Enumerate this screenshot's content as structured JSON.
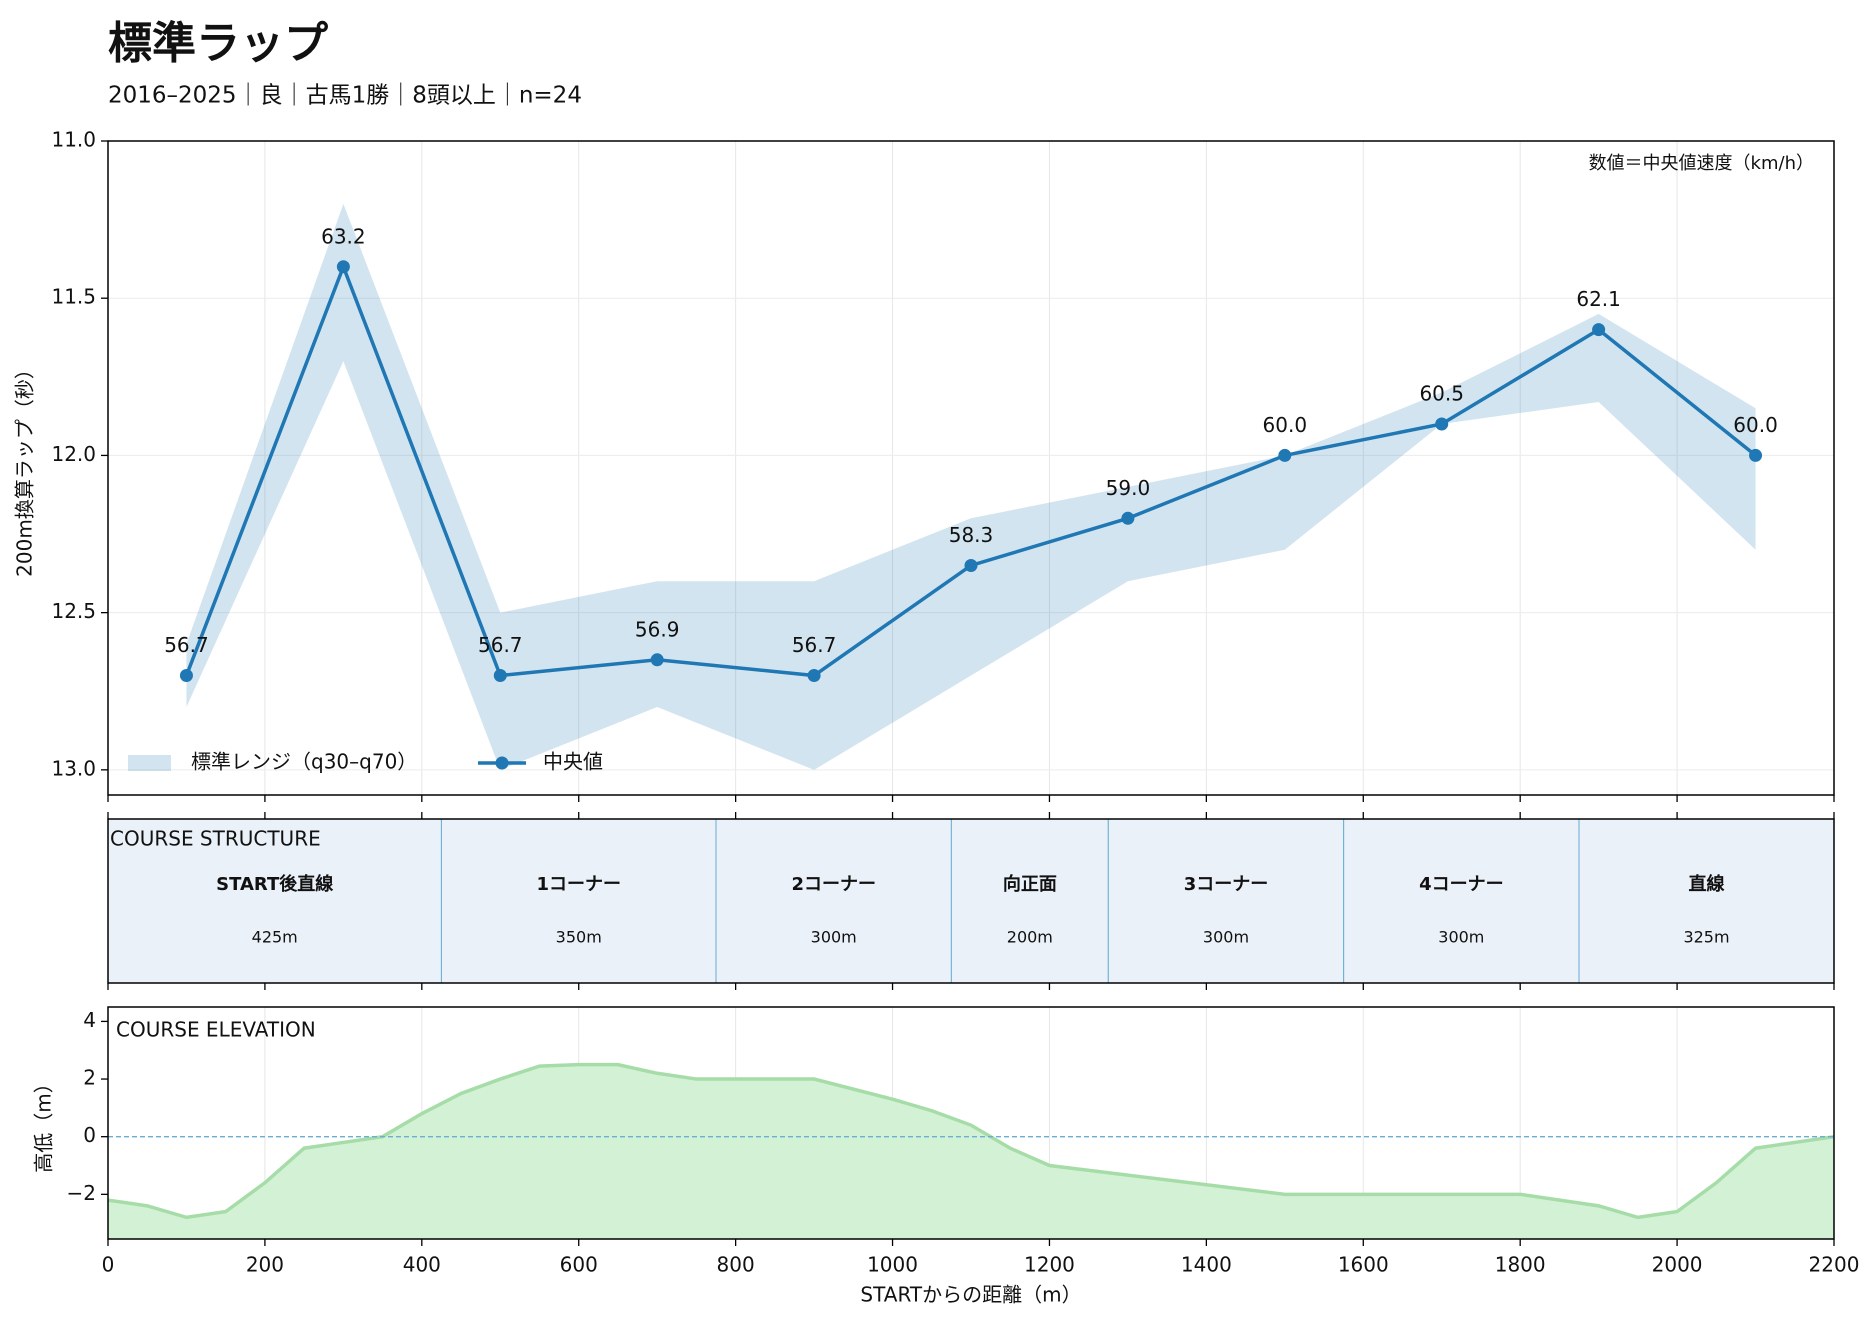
{
  "title": "標準ラップ",
  "subtitle": "2016–2025｜良｜古馬1勝｜8頭以上｜n=24",
  "chart_data": [
    {
      "type": "line",
      "ylabel": "200m換算ラップ（秒）",
      "annotation": "数値＝中央値速度（km/h）",
      "x": [
        100,
        300,
        500,
        700,
        900,
        1100,
        1300,
        1500,
        1700,
        1900,
        2100
      ],
      "xlim": [
        0,
        2200
      ],
      "ylim": [
        11.0,
        13.08
      ],
      "y_inverted": true,
      "yticks": [
        {
          "value": 11.0,
          "label": "11.0"
        },
        11.5,
        {
          "value": 12.0,
          "label": "12.0"
        },
        12.5,
        {
          "value": 13.0,
          "label": "13.0"
        }
      ],
      "grid": true,
      "band": {
        "name": "標準レンジ（q30–q70）",
        "color": "#1f77b4",
        "low": [
          12.6,
          11.2,
          12.5,
          12.4,
          12.4,
          12.2,
          12.1,
          12.0,
          11.8,
          11.55,
          11.85
        ],
        "high": [
          12.8,
          11.7,
          13.0,
          12.8,
          13.0,
          12.7,
          12.4,
          12.3,
          11.9,
          11.83,
          12.3
        ]
      },
      "series": [
        {
          "name": "中央値",
          "color": "#1f77b4",
          "values": [
            12.7,
            11.4,
            12.7,
            12.65,
            12.7,
            12.35,
            12.2,
            12.0,
            11.9,
            11.6,
            12.0
          ],
          "speed_labels": [
            "56.7",
            "63.2",
            "56.7",
            "56.9",
            "56.7",
            "58.3",
            "59.0",
            "60.0",
            "60.5",
            "62.1",
            "60.0"
          ]
        }
      ],
      "legend": "lower left"
    },
    {
      "type": "segments",
      "label": "COURSE STRUCTURE",
      "xlim": [
        0,
        2200
      ],
      "color": "#eaf1f8",
      "divider_color": "#6aaed6",
      "names": [
        "START後直線",
        "1コーナー",
        "2コーナー",
        "向正面",
        "3コーナー",
        "4コーナー",
        "直線"
      ],
      "lengths": [
        425,
        350,
        300,
        200,
        300,
        300,
        325
      ],
      "length_labels": [
        "425m",
        "350m",
        "300m",
        "200m",
        "300m",
        "300m",
        "325m"
      ]
    },
    {
      "type": "area",
      "label": "COURSE ELEVATION",
      "xlabel": "STARTからの距離（m）",
      "ylabel": "高低（m）",
      "color": "#a6dca8",
      "fill": "#d3f2d5",
      "reference_line": 0,
      "reference_color": "#6aaed6",
      "x": [
        0,
        50,
        100,
        150,
        200,
        250,
        300,
        350,
        400,
        450,
        500,
        550,
        600,
        650,
        700,
        750,
        800,
        900,
        1000,
        1050,
        1100,
        1150,
        1200,
        1500,
        1800,
        1900,
        1950,
        2000,
        2050,
        2100,
        2200
      ],
      "values": [
        -2.2,
        -2.4,
        -2.8,
        -2.6,
        -1.6,
        -0.4,
        -0.2,
        0,
        0.8,
        1.5,
        2.0,
        2.45,
        2.5,
        2.5,
        2.2,
        2.0,
        2.0,
        2.0,
        1.3,
        0.9,
        0.4,
        -0.4,
        -1.0,
        -2.0,
        -2.0,
        -2.4,
        -2.8,
        -2.6,
        -1.6,
        -0.4,
        0
      ],
      "xlim": [
        0,
        2200
      ],
      "xticks": [
        0,
        200,
        400,
        600,
        800,
        1000,
        1200,
        1400,
        1600,
        1800,
        2000,
        2200
      ],
      "ylim": [
        -3.55,
        4.5
      ],
      "yticks": [
        {
          "value": -2,
          "label": "−2"
        },
        0,
        2,
        4
      ],
      "grid": true
    }
  ]
}
